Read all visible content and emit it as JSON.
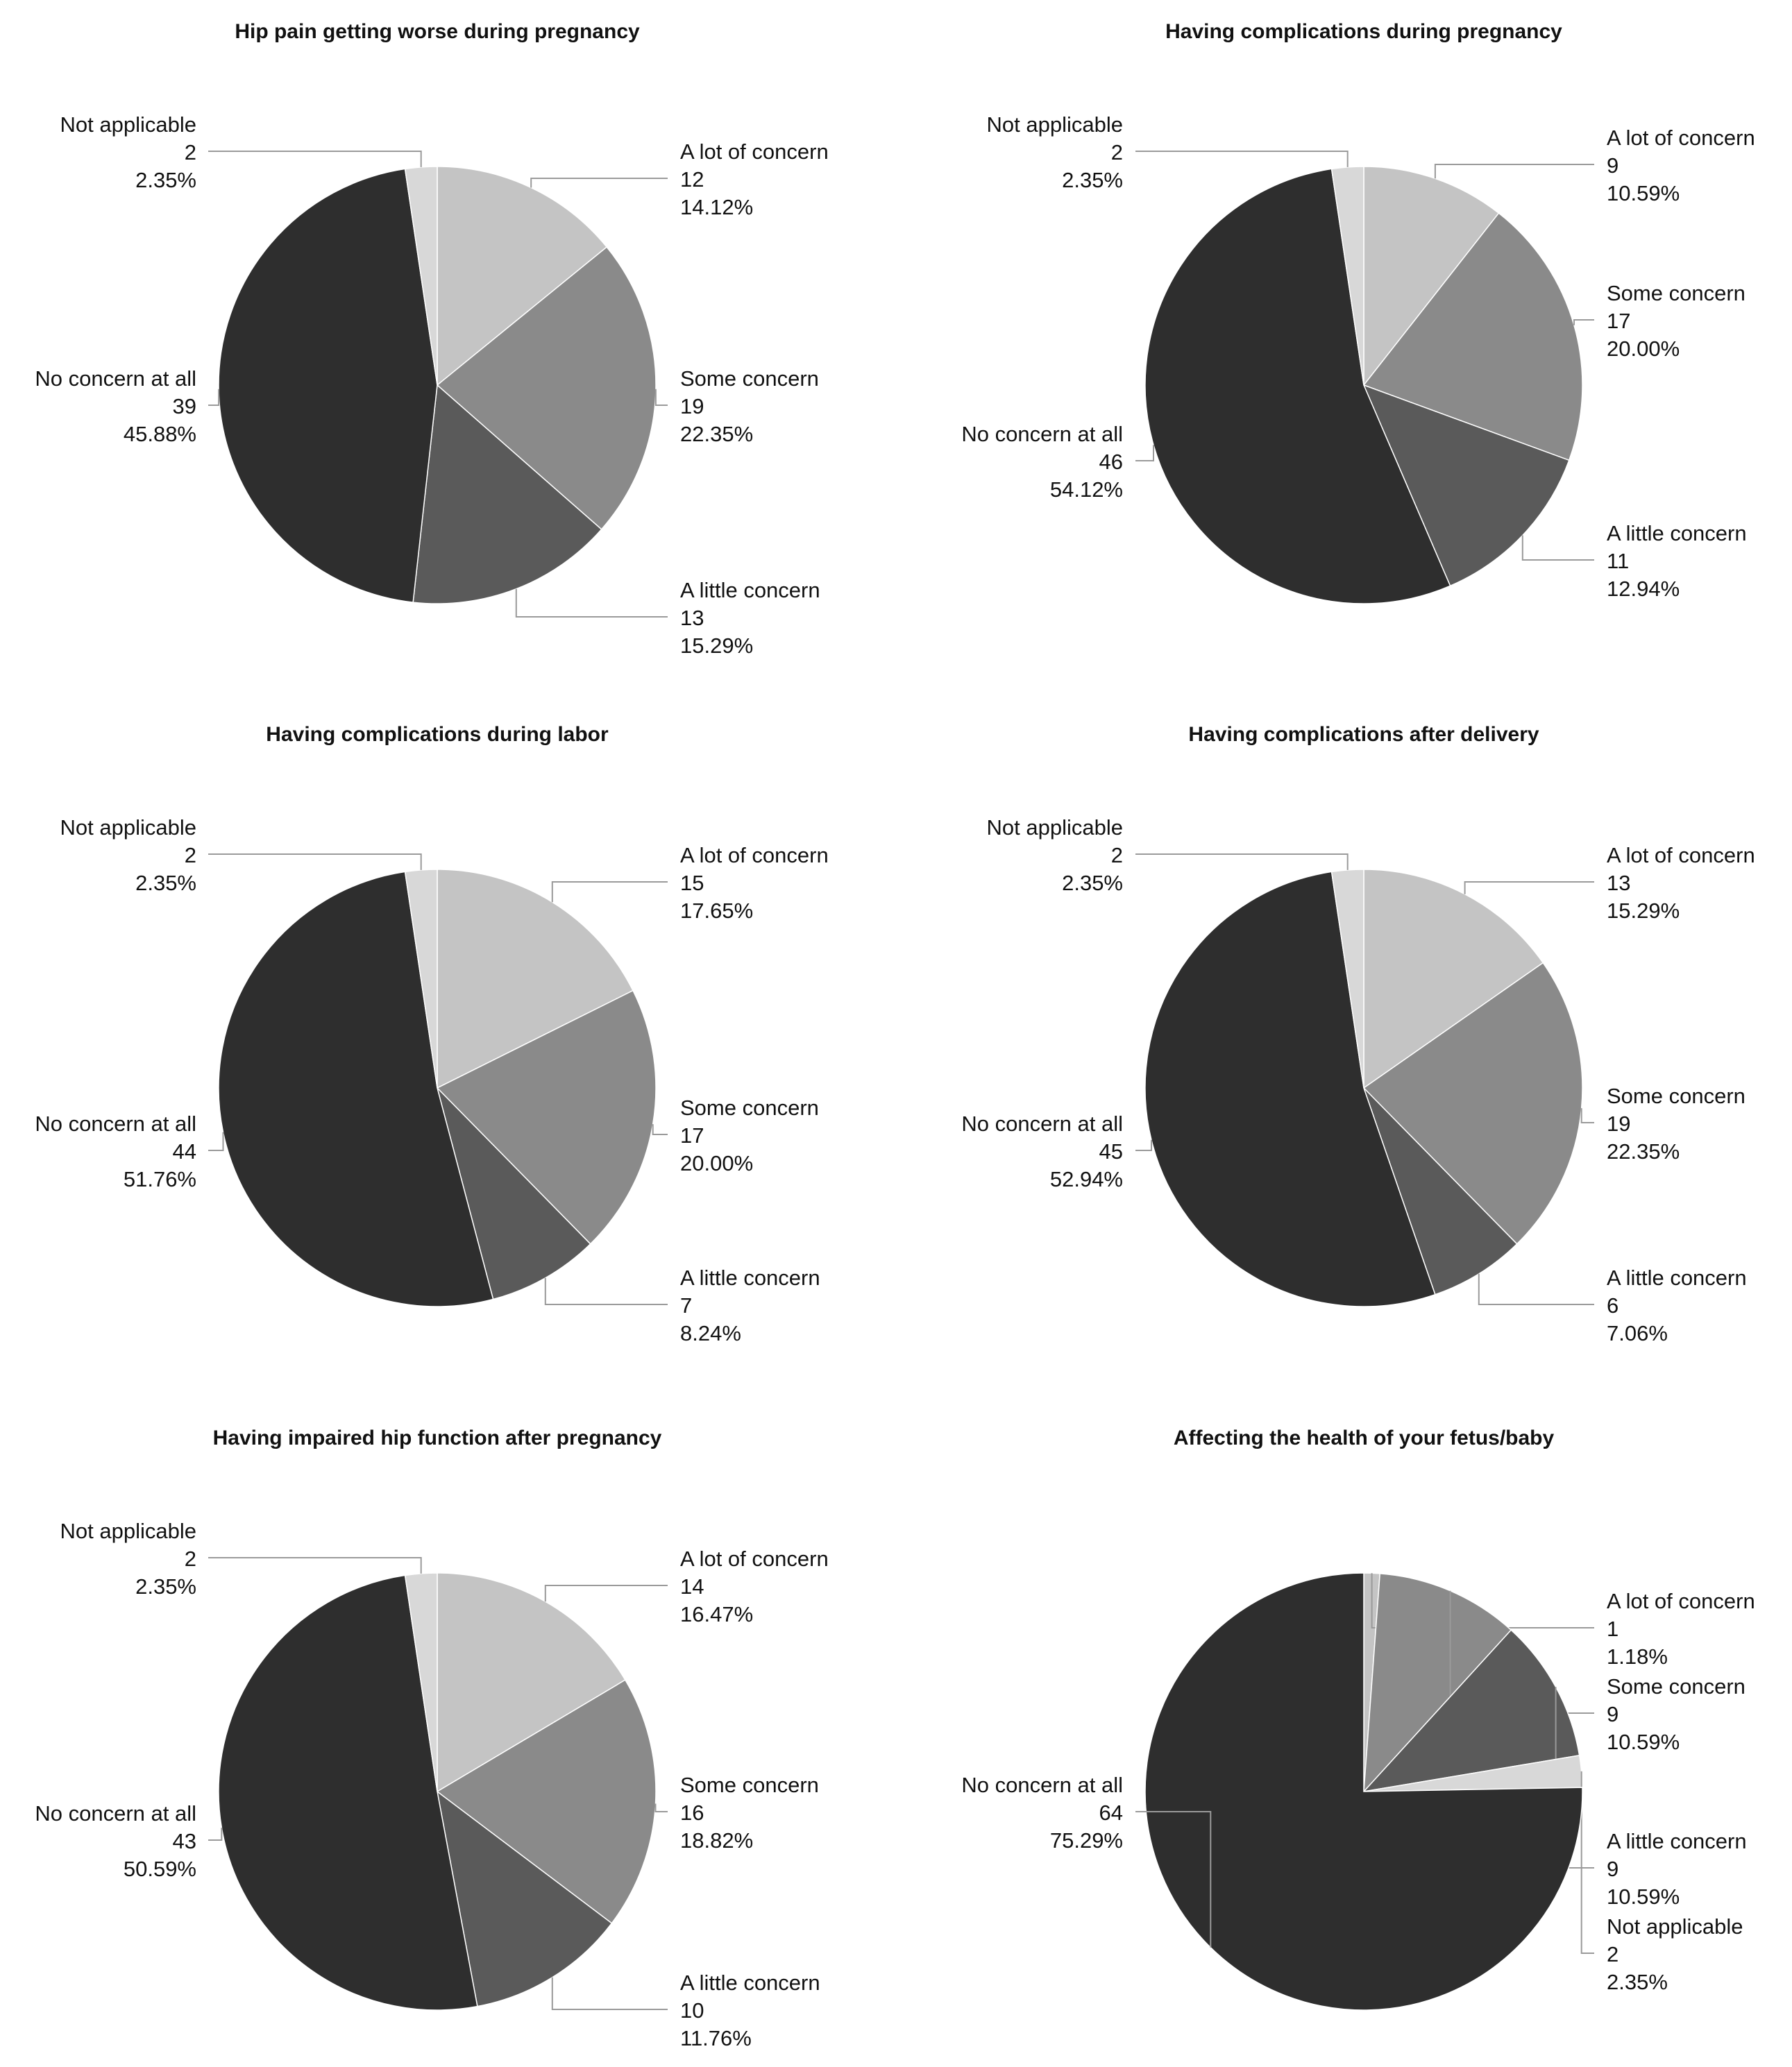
{
  "chart_data": [
    {
      "type": "pie",
      "title": "Hip pain getting worse during pregnancy",
      "slices": [
        {
          "label": "A lot of concern",
          "count": "12",
          "percent": "14.12%",
          "value": 12,
          "color": "#c4c4c4"
        },
        {
          "label": "Some concern",
          "count": "19",
          "percent": "22.35%",
          "value": 19,
          "color": "#8a8a8a"
        },
        {
          "label": "A little concern",
          "count": "13",
          "percent": "15.29%",
          "value": 13,
          "color": "#5a5a5a"
        },
        {
          "label": "No concern at all",
          "count": "39",
          "percent": "45.88%",
          "value": 39,
          "color": "#2e2e2e"
        },
        {
          "label": "Not applicable",
          "count": "2",
          "percent": "2.35%",
          "value": 2,
          "color": "#d8d8d8"
        }
      ]
    },
    {
      "type": "pie",
      "title": "Having complications during pregnancy",
      "slices": [
        {
          "label": "A lot of concern",
          "count": "9",
          "percent": "10.59%",
          "value": 9,
          "color": "#c4c4c4"
        },
        {
          "label": "Some concern",
          "count": "17",
          "percent": "20.00%",
          "value": 17,
          "color": "#8a8a8a"
        },
        {
          "label": "A little concern",
          "count": "11",
          "percent": "12.94%",
          "value": 11,
          "color": "#5a5a5a"
        },
        {
          "label": "No concern at all",
          "count": "46",
          "percent": "54.12%",
          "value": 46,
          "color": "#2e2e2e"
        },
        {
          "label": "Not applicable",
          "count": "2",
          "percent": "2.35%",
          "value": 2,
          "color": "#d8d8d8"
        }
      ]
    },
    {
      "type": "pie",
      "title": "Having complications during labor",
      "slices": [
        {
          "label": "A lot of concern",
          "count": "15",
          "percent": "17.65%",
          "value": 15,
          "color": "#c4c4c4"
        },
        {
          "label": "Some concern",
          "count": "17",
          "percent": "20.00%",
          "value": 17,
          "color": "#8a8a8a"
        },
        {
          "label": "A little concern",
          "count": "7",
          "percent": "8.24%",
          "value": 7,
          "color": "#5a5a5a"
        },
        {
          "label": "No concern at all",
          "count": "44",
          "percent": "51.76%",
          "value": 44,
          "color": "#2e2e2e"
        },
        {
          "label": "Not applicable",
          "count": "2",
          "percent": "2.35%",
          "value": 2,
          "color": "#d8d8d8"
        }
      ]
    },
    {
      "type": "pie",
      "title": "Having complications after delivery",
      "slices": [
        {
          "label": "A lot of concern",
          "count": "13",
          "percent": "15.29%",
          "value": 13,
          "color": "#c4c4c4"
        },
        {
          "label": "Some concern",
          "count": "19",
          "percent": "22.35%",
          "value": 19,
          "color": "#8a8a8a"
        },
        {
          "label": "A little concern",
          "count": "6",
          "percent": "7.06%",
          "value": 6,
          "color": "#5a5a5a"
        },
        {
          "label": "No concern at all",
          "count": "45",
          "percent": "52.94%",
          "value": 45,
          "color": "#2e2e2e"
        },
        {
          "label": "Not applicable",
          "count": "2",
          "percent": "2.35%",
          "value": 2,
          "color": "#d8d8d8"
        }
      ]
    },
    {
      "type": "pie",
      "title": "Having impaired hip function after pregnancy",
      "slices": [
        {
          "label": "A lot of concern",
          "count": "14",
          "percent": "16.47%",
          "value": 14,
          "color": "#c4c4c4"
        },
        {
          "label": "Some concern",
          "count": "16",
          "percent": "18.82%",
          "value": 16,
          "color": "#8a8a8a"
        },
        {
          "label": "A little concern",
          "count": "10",
          "percent": "11.76%",
          "value": 10,
          "color": "#5a5a5a"
        },
        {
          "label": "No concern at all",
          "count": "43",
          "percent": "50.59%",
          "value": 43,
          "color": "#2e2e2e"
        },
        {
          "label": "Not applicable",
          "count": "2",
          "percent": "2.35%",
          "value": 2,
          "color": "#d8d8d8"
        }
      ]
    },
    {
      "type": "pie",
      "title": "Affecting the health of your fetus/baby",
      "slices": [
        {
          "label": "A lot of concern",
          "count": "1",
          "percent": "1.18%",
          "value": 1,
          "color": "#c4c4c4"
        },
        {
          "label": "Some concern",
          "count": "9",
          "percent": "10.59%",
          "value": 9,
          "color": "#8a8a8a"
        },
        {
          "label": "A little concern",
          "count": "9",
          "percent": "10.59%",
          "value": 9,
          "color": "#5a5a5a"
        },
        {
          "label": "Not applicable",
          "count": "2",
          "percent": "2.35%",
          "value": 2,
          "color": "#d8d8d8"
        },
        {
          "label": "No concern at all",
          "count": "64",
          "percent": "75.29%",
          "value": 64,
          "color": "#2e2e2e"
        }
      ]
    }
  ]
}
